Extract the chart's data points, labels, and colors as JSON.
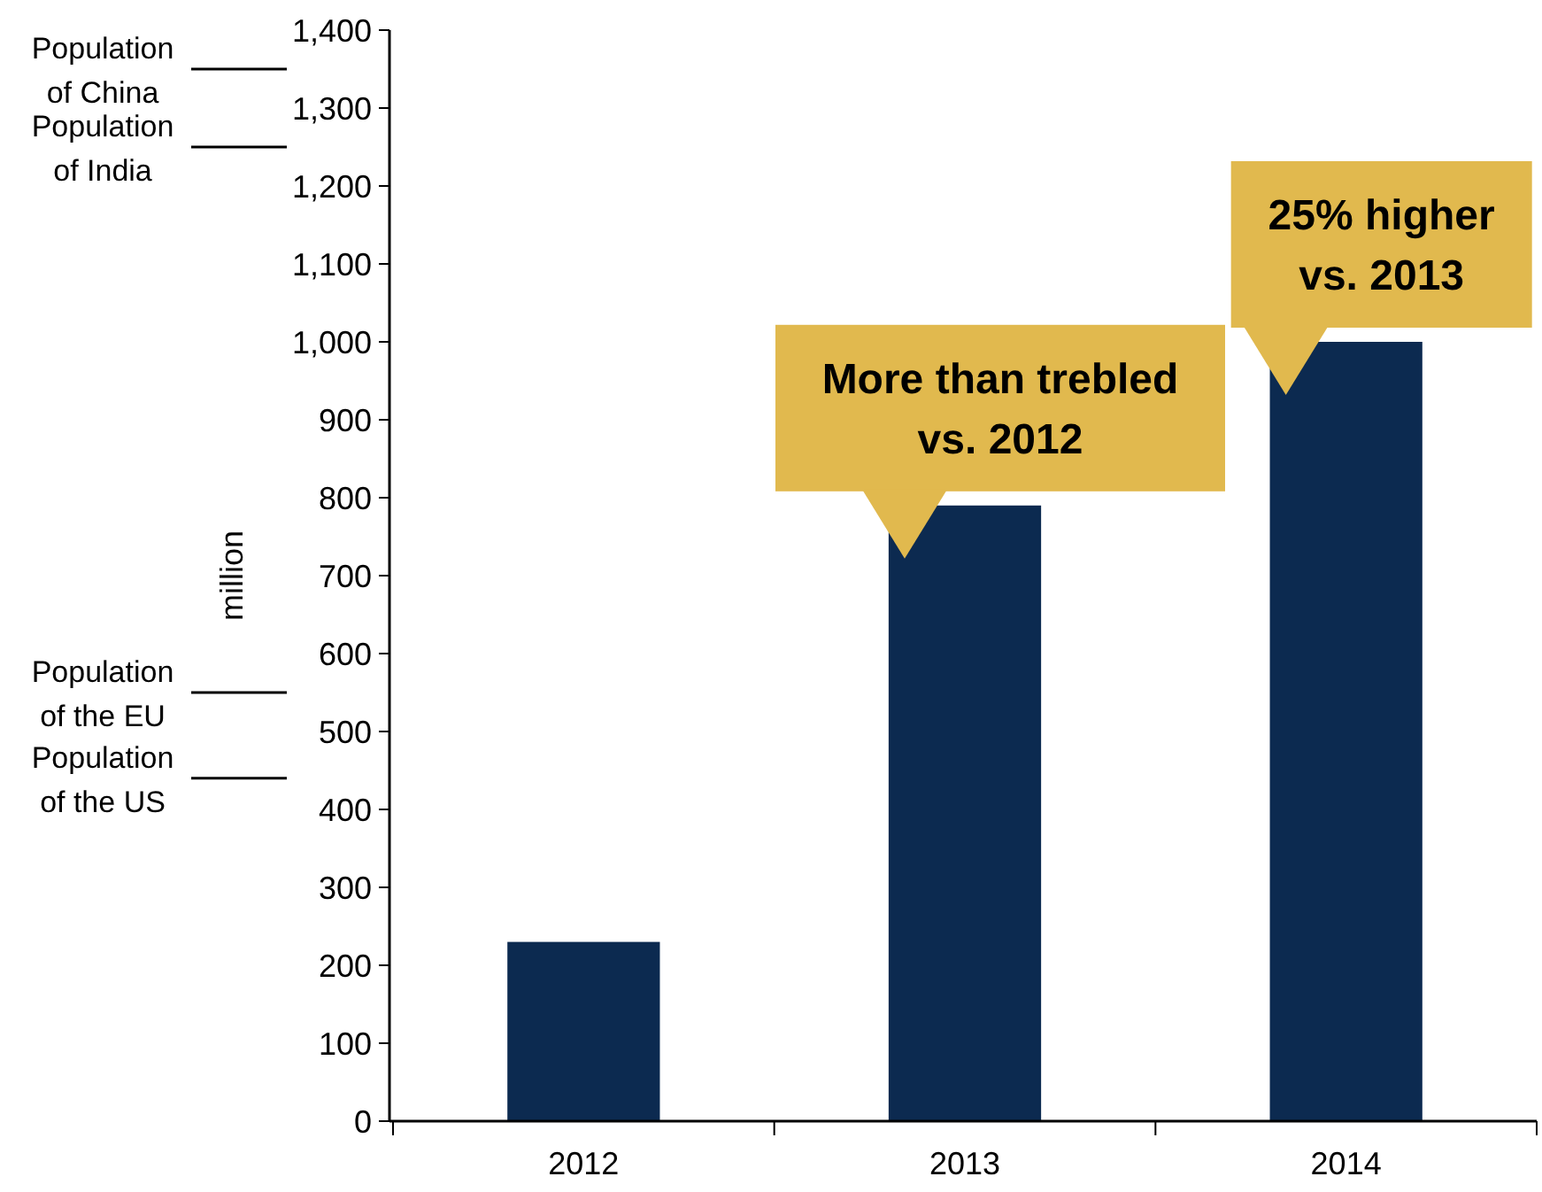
{
  "chart_data": {
    "type": "bar",
    "categories": [
      "2012",
      "2013",
      "2014"
    ],
    "values": [
      230,
      790,
      1000
    ],
    "color": "#0c2a50",
    "ylabel": "million",
    "ylim": [
      0,
      1400
    ],
    "yticks": [
      0,
      100,
      200,
      300,
      400,
      500,
      600,
      700,
      800,
      900,
      {
        "value": 1000,
        "label": "1,000"
      },
      {
        "value": 1100,
        "label": "1,100"
      },
      {
        "value": 1200,
        "label": "1,200"
      },
      {
        "value": 1300,
        "label": "1,300"
      },
      {
        "value": 1400,
        "label": "1,400"
      }
    ],
    "ref_lines": [
      {
        "axis": "y",
        "value": 1350,
        "label": "Population of China"
      },
      {
        "axis": "y",
        "value": 1250,
        "label": "Population of India"
      },
      {
        "axis": "y",
        "value": 550,
        "label": "Population of the EU"
      },
      {
        "axis": "y",
        "value": 440,
        "label": "Population of the US"
      }
    ],
    "annotations": [
      {
        "text": "More than trebled\nvs. 2012",
        "x": "2013",
        "y": 790
      },
      {
        "text": "25% higher\nvs. 2013",
        "x": "2014",
        "y": 1000
      }
    ],
    "grid": false
  }
}
